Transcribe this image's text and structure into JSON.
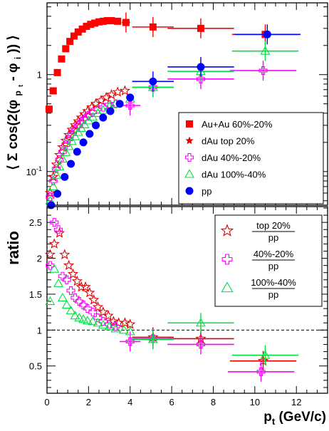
{
  "chart_data": [
    {
      "type": "scatter",
      "panel": "top",
      "ylabel_parts": {
        "open": "⟨",
        "sum": "Σ cos(2(φ",
        "sub_p": "p",
        "sub_t": "t",
        "minus": " - φ",
        "sub_i": "i",
        "close": "))",
        "end": "⟩"
      },
      "xlim": [
        0,
        13.5
      ],
      "ylim": [
        0.045,
        5.5
      ],
      "yscale": "log",
      "yticklabels": [
        "10",
        "-1",
        "1"
      ],
      "legend_position": "right-middle",
      "series": [
        {
          "name": "Au+Au 60%-20%",
          "marker": "filled-square",
          "color": "#ff0000",
          "points": [
            {
              "x": 0.1,
              "y": 0.44
            },
            {
              "x": 0.3,
              "y": 0.68
            },
            {
              "x": 0.5,
              "y": 1.05
            },
            {
              "x": 0.7,
              "y": 1.45
            },
            {
              "x": 0.9,
              "y": 1.85
            },
            {
              "x": 1.1,
              "y": 2.2
            },
            {
              "x": 1.3,
              "y": 2.5
            },
            {
              "x": 1.5,
              "y": 2.75
            },
            {
              "x": 1.7,
              "y": 2.95
            },
            {
              "x": 1.9,
              "y": 3.15
            },
            {
              "x": 2.1,
              "y": 3.3
            },
            {
              "x": 2.3,
              "y": 3.4
            },
            {
              "x": 2.5,
              "y": 3.5
            },
            {
              "x": 2.7,
              "y": 3.55
            },
            {
              "x": 2.9,
              "y": 3.6
            },
            {
              "x": 3.1,
              "y": 3.6
            },
            {
              "x": 3.4,
              "y": 3.55
            },
            {
              "x": 3.8,
              "y": 3.45,
              "xerr": 0.2
            },
            {
              "x": 5.1,
              "y": 3.1,
              "xerr": 1.0
            },
            {
              "x": 7.4,
              "y": 3.0,
              "xerr": 1.6
            },
            {
              "x": 10.5,
              "y": 2.6,
              "xerr": 1.6
            }
          ]
        },
        {
          "name": "dAu top 20%",
          "marker": "open-star",
          "color": "#dd0000",
          "points": [
            {
              "x": 0.15,
              "y": 0.06
            },
            {
              "x": 0.3,
              "y": 0.088
            },
            {
              "x": 0.45,
              "y": 0.118
            },
            {
              "x": 0.6,
              "y": 0.148
            },
            {
              "x": 0.75,
              "y": 0.178
            },
            {
              "x": 0.9,
              "y": 0.208
            },
            {
              "x": 1.05,
              "y": 0.238
            },
            {
              "x": 1.2,
              "y": 0.27
            },
            {
              "x": 1.35,
              "y": 0.3
            },
            {
              "x": 1.5,
              "y": 0.33
            },
            {
              "x": 1.65,
              "y": 0.36
            },
            {
              "x": 1.8,
              "y": 0.39
            },
            {
              "x": 1.95,
              "y": 0.42
            },
            {
              "x": 2.15,
              "y": 0.46
            },
            {
              "x": 2.35,
              "y": 0.5
            },
            {
              "x": 2.6,
              "y": 0.54
            },
            {
              "x": 2.85,
              "y": 0.58
            },
            {
              "x": 3.1,
              "y": 0.62
            },
            {
              "x": 3.4,
              "y": 0.66
            },
            {
              "x": 3.75,
              "y": 0.68
            }
          ]
        },
        {
          "name": "dAu 40%-20%",
          "marker": "open-cross",
          "color": "#ff00ff",
          "points": [
            {
              "x": 0.15,
              "y": 0.055
            },
            {
              "x": 0.3,
              "y": 0.08
            },
            {
              "x": 0.45,
              "y": 0.107
            },
            {
              "x": 0.6,
              "y": 0.133
            },
            {
              "x": 0.75,
              "y": 0.16
            },
            {
              "x": 0.9,
              "y": 0.188
            },
            {
              "x": 1.05,
              "y": 0.215
            },
            {
              "x": 1.2,
              "y": 0.243
            },
            {
              "x": 1.35,
              "y": 0.27
            },
            {
              "x": 1.5,
              "y": 0.298
            },
            {
              "x": 1.65,
              "y": 0.325
            },
            {
              "x": 1.8,
              "y": 0.35
            },
            {
              "x": 2.0,
              "y": 0.38
            },
            {
              "x": 2.2,
              "y": 0.41
            },
            {
              "x": 2.45,
              "y": 0.44
            },
            {
              "x": 2.7,
              "y": 0.46
            },
            {
              "x": 3.0,
              "y": 0.49
            },
            {
              "x": 3.3,
              "y": 0.5
            },
            {
              "x": 4.0,
              "y": 0.48,
              "xerr": 0.5
            },
            {
              "x": 5.1,
              "y": 0.74,
              "xerr": 1.0
            },
            {
              "x": 7.4,
              "y": 0.9,
              "xerr": 1.6
            },
            {
              "x": 10.4,
              "y": 1.1,
              "xerr": 1.6
            }
          ]
        },
        {
          "name": "dAu 100%-40%",
          "marker": "open-triangle",
          "color": "#00e040",
          "points": [
            {
              "x": 0.15,
              "y": 0.05
            },
            {
              "x": 0.3,
              "y": 0.07
            },
            {
              "x": 0.45,
              "y": 0.092
            },
            {
              "x": 0.6,
              "y": 0.112
            },
            {
              "x": 0.75,
              "y": 0.135
            },
            {
              "x": 0.9,
              "y": 0.158
            },
            {
              "x": 1.05,
              "y": 0.182
            },
            {
              "x": 1.2,
              "y": 0.205
            },
            {
              "x": 1.35,
              "y": 0.23
            },
            {
              "x": 1.5,
              "y": 0.255
            },
            {
              "x": 1.65,
              "y": 0.28
            },
            {
              "x": 1.8,
              "y": 0.305
            },
            {
              "x": 2.0,
              "y": 0.335
            },
            {
              "x": 2.2,
              "y": 0.365
            },
            {
              "x": 2.45,
              "y": 0.4
            },
            {
              "x": 2.7,
              "y": 0.43
            },
            {
              "x": 3.0,
              "y": 0.47
            },
            {
              "x": 3.3,
              "y": 0.5
            },
            {
              "x": 4.0,
              "y": 0.56
            },
            {
              "x": 5.1,
              "y": 0.74,
              "xerr": 1.0
            },
            {
              "x": 7.4,
              "y": 1.08,
              "xerr": 1.6
            },
            {
              "x": 10.5,
              "y": 1.75,
              "xerr": 1.6
            }
          ]
        },
        {
          "name": "pp",
          "marker": "filled-circle",
          "color": "#0000ff",
          "points": [
            {
              "x": 0.2,
              "y": 0.045
            },
            {
              "x": 0.5,
              "y": 0.059
            },
            {
              "x": 0.85,
              "y": 0.088
            },
            {
              "x": 1.15,
              "y": 0.12
            },
            {
              "x": 1.45,
              "y": 0.16
            },
            {
              "x": 1.75,
              "y": 0.2
            },
            {
              "x": 2.05,
              "y": 0.245
            },
            {
              "x": 2.35,
              "y": 0.3
            },
            {
              "x": 2.7,
              "y": 0.36
            },
            {
              "x": 3.05,
              "y": 0.42
            },
            {
              "x": 3.5,
              "y": 0.5
            },
            {
              "x": 4.0,
              "y": 0.58
            },
            {
              "x": 5.1,
              "y": 0.85,
              "xerr": 1.0
            },
            {
              "x": 7.4,
              "y": 1.2,
              "xerr": 1.6
            },
            {
              "x": 10.6,
              "y": 2.6,
              "xerr": 1.6
            }
          ]
        }
      ]
    },
    {
      "type": "scatter",
      "panel": "bottom",
      "ylabel": "ratio",
      "xlabel_parts": {
        "p": "p",
        "sub": "t",
        "rest": " (GeV/c)"
      },
      "xlim": [
        0,
        13.5
      ],
      "ylim": [
        0.12,
        2.72
      ],
      "xticks": [
        0,
        2,
        4,
        6,
        8,
        10,
        12
      ],
      "yticks": [
        0.5,
        1,
        1.5,
        2,
        2.5
      ],
      "yticklabels": [
        "0.5",
        "1",
        "1.5",
        "2",
        "2.5"
      ],
      "reference_line": 1,
      "legend_position": "right-top",
      "series": [
        {
          "name": "top 20%",
          "legend_numerator": "top 20%",
          "legend_denominator": "pp",
          "marker": "open-star",
          "color": "#dd0000",
          "points": [
            {
              "x": 0.15,
              "y": 2.05
            },
            {
              "x": 0.35,
              "y": 2.2
            },
            {
              "x": 0.6,
              "y": 2.35
            },
            {
              "x": 0.85,
              "y": 2.05
            },
            {
              "x": 1.05,
              "y": 1.9
            },
            {
              "x": 1.25,
              "y": 1.78
            },
            {
              "x": 1.45,
              "y": 1.68
            },
            {
              "x": 1.65,
              "y": 1.6
            },
            {
              "x": 1.85,
              "y": 1.6
            },
            {
              "x": 2.05,
              "y": 1.52
            },
            {
              "x": 2.25,
              "y": 1.42
            },
            {
              "x": 2.45,
              "y": 1.32
            },
            {
              "x": 2.7,
              "y": 1.25
            },
            {
              "x": 2.95,
              "y": 1.2
            },
            {
              "x": 3.2,
              "y": 1.12
            },
            {
              "x": 3.45,
              "y": 1.1
            },
            {
              "x": 3.75,
              "y": 1.1
            },
            {
              "x": 4.0,
              "y": 1.08
            },
            {
              "x": 5.1,
              "y": 0.9,
              "xerr": 1.0
            },
            {
              "x": 7.4,
              "y": 0.88,
              "xerr": 1.6
            },
            {
              "x": 10.4,
              "y": 0.57,
              "xerr": 1.6
            }
          ]
        },
        {
          "name": "40%-20%",
          "legend_numerator": "40%-20%",
          "legend_denominator": "pp",
          "marker": "open-cross",
          "color": "#ff00ff",
          "points": [
            {
              "x": 0.15,
              "y": 1.9
            },
            {
              "x": 0.35,
              "y": 2.5
            },
            {
              "x": 0.55,
              "y": 2.4
            },
            {
              "x": 0.75,
              "y": 1.75
            },
            {
              "x": 0.95,
              "y": 1.7
            },
            {
              "x": 1.15,
              "y": 1.55
            },
            {
              "x": 1.35,
              "y": 1.45
            },
            {
              "x": 1.55,
              "y": 1.4
            },
            {
              "x": 1.75,
              "y": 1.35
            },
            {
              "x": 1.95,
              "y": 1.3
            },
            {
              "x": 2.2,
              "y": 1.25
            },
            {
              "x": 2.45,
              "y": 1.17
            },
            {
              "x": 2.7,
              "y": 1.12
            },
            {
              "x": 3.0,
              "y": 1.08
            },
            {
              "x": 3.3,
              "y": 1.05
            },
            {
              "x": 4.0,
              "y": 0.84,
              "xerr": 0.5
            },
            {
              "x": 5.1,
              "y": 0.88,
              "xerr": 1.0
            },
            {
              "x": 7.4,
              "y": 0.8,
              "xerr": 1.6
            },
            {
              "x": 10.3,
              "y": 0.42,
              "xerr": 1.6
            }
          ]
        },
        {
          "name": "100%-40%",
          "legend_numerator": "100%-40%",
          "legend_denominator": "pp",
          "marker": "open-triangle",
          "color": "#00e040",
          "points": [
            {
              "x": 0.15,
              "y": 1.4
            },
            {
              "x": 0.35,
              "y": 1.85
            },
            {
              "x": 0.55,
              "y": 1.65
            },
            {
              "x": 0.75,
              "y": 1.45
            },
            {
              "x": 0.95,
              "y": 1.35
            },
            {
              "x": 1.15,
              "y": 1.27
            },
            {
              "x": 1.35,
              "y": 1.2
            },
            {
              "x": 1.55,
              "y": 1.17
            },
            {
              "x": 1.75,
              "y": 1.15
            },
            {
              "x": 1.95,
              "y": 1.13
            },
            {
              "x": 2.2,
              "y": 1.12
            },
            {
              "x": 2.45,
              "y": 1.1
            },
            {
              "x": 2.7,
              "y": 1.07
            },
            {
              "x": 3.0,
              "y": 1.05
            },
            {
              "x": 3.3,
              "y": 1.02
            },
            {
              "x": 3.7,
              "y": 1.0
            },
            {
              "x": 4.0,
              "y": 0.98
            },
            {
              "x": 5.1,
              "y": 0.87,
              "xerr": 1.0
            },
            {
              "x": 7.4,
              "y": 1.1,
              "xerr": 1.6
            },
            {
              "x": 10.5,
              "y": 0.65,
              "xerr": 1.6
            }
          ]
        }
      ]
    }
  ]
}
